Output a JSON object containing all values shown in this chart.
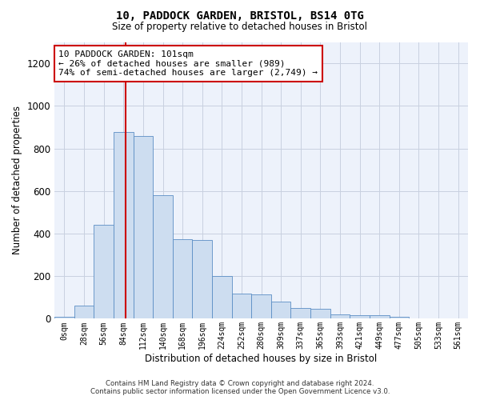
{
  "title": "10, PADDOCK GARDEN, BRISTOL, BS14 0TG",
  "subtitle": "Size of property relative to detached houses in Bristol",
  "xlabel": "Distribution of detached houses by size in Bristol",
  "ylabel": "Number of detached properties",
  "bar_color": "#cdddf0",
  "bar_edge_color": "#5b8ec4",
  "background_color": "#edf2fb",
  "categories": [
    "0sqm",
    "28sqm",
    "56sqm",
    "84sqm",
    "112sqm",
    "140sqm",
    "168sqm",
    "196sqm",
    "224sqm",
    "252sqm",
    "280sqm",
    "309sqm",
    "337sqm",
    "365sqm",
    "393sqm",
    "421sqm",
    "449sqm",
    "477sqm",
    "505sqm",
    "533sqm",
    "561sqm"
  ],
  "values": [
    10,
    62,
    440,
    878,
    860,
    580,
    375,
    370,
    200,
    118,
    115,
    82,
    50,
    45,
    20,
    17,
    15,
    8,
    2,
    1,
    1
  ],
  "ylim": [
    0,
    1300
  ],
  "yticks": [
    0,
    200,
    400,
    600,
    800,
    1000,
    1200
  ],
  "property_line_x": 3.62,
  "annotation_text": "10 PADDOCK GARDEN: 101sqm\n← 26% of detached houses are smaller (989)\n74% of semi-detached houses are larger (2,749) →",
  "annotation_box_color": "#ffffff",
  "annotation_box_edge": "#cc0000",
  "footer_line1": "Contains HM Land Registry data © Crown copyright and database right 2024.",
  "footer_line2": "Contains public sector information licensed under the Open Government Licence v3.0.",
  "red_line_color": "#cc0000",
  "grid_color": "#c8d0e0"
}
